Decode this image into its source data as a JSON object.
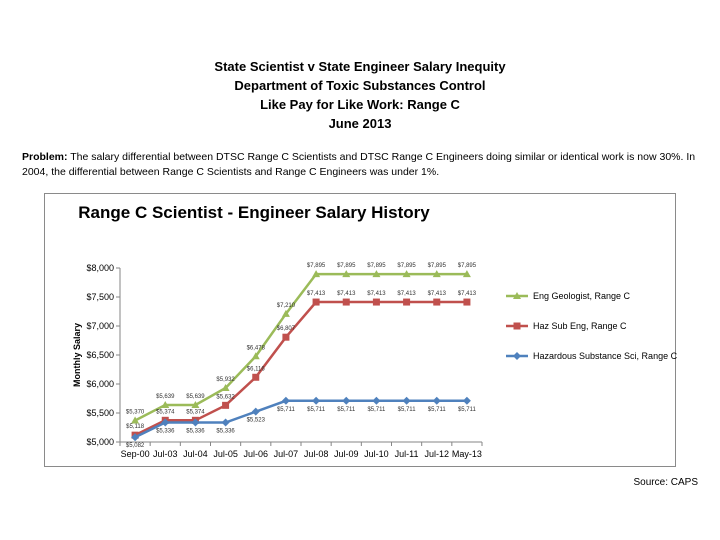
{
  "header": {
    "line1": "State Scientist v State Engineer Salary Inequity",
    "line2": "Department of Toxic Substances Control",
    "line3": "Like Pay for Like Work: Range C",
    "line4": "June 2013"
  },
  "problem": {
    "label": "Problem:",
    "text": "The salary differential between DTSC Range C Scientists and DTSC Range C Engineers doing similar or identical work is now 30%.  In 2004, the differential between Range C Scientists and Range C Engineers was under 1%."
  },
  "source": "Source:  CAPS",
  "chart_data": {
    "type": "line",
    "title": "Range C Scientist - Engineer Salary History",
    "xlabel": "",
    "ylabel": "Monthly Salary",
    "categories": [
      "Sep-00",
      "Jul-03",
      "Jul-04",
      "Jul-05",
      "Jul-06",
      "Jul-07",
      "Jul-08",
      "Jul-09",
      "Jul-10",
      "Jul-11",
      "Jul-12",
      "May-13"
    ],
    "ylim": [
      5000,
      8000
    ],
    "yticks": [
      5000,
      5500,
      6000,
      6500,
      7000,
      7500,
      8000
    ],
    "ytick_labels": [
      "$5,000",
      "$5,500",
      "$6,000",
      "$6,500",
      "$7,000",
      "$7,500",
      "$8,000"
    ],
    "grid": false,
    "legend_position": "right",
    "series": [
      {
        "name": "Eng Geologist, Range C",
        "color": "#9bbb59",
        "marker": "triangle",
        "values": [
          5370,
          5639,
          5639,
          5932,
          6478,
          7210,
          7895,
          7895,
          7895,
          7895,
          7895,
          7895
        ],
        "labels": [
          "$5,370",
          "$5,639",
          "$5,639",
          "$5,932",
          "$6,478",
          "$7,210",
          "$7,895",
          "$7,895",
          "$7,895",
          "$7,895",
          "$7,895",
          "$7,895"
        ]
      },
      {
        "name": "Haz Sub Eng, Range C",
        "color": "#c0504d",
        "marker": "square",
        "values": [
          5118,
          5374,
          5374,
          5632,
          6116,
          6807,
          7413,
          7413,
          7413,
          7413,
          7413,
          7413
        ],
        "labels": [
          "$5,118",
          "$5,374",
          "$5,374",
          "$5,632",
          "$6,116",
          "$6,807",
          "$7,413",
          "$7,413",
          "$7,413",
          "$7,413",
          "$7,413",
          "$7,413"
        ]
      },
      {
        "name": "Hazardous Substance Sci, Range C",
        "color": "#4f81bd",
        "marker": "diamond",
        "values": [
          5082,
          5336,
          5336,
          5336,
          5523,
          5711,
          5711,
          5711,
          5711,
          5711,
          5711,
          5711
        ],
        "labels": [
          "$5,082",
          "$5,336",
          "$5,336",
          "$5,336",
          "$5,523",
          "$5,711",
          "$5,711",
          "$5,711",
          "$5,711",
          "$5,711",
          "$5,711",
          "$5,711"
        ]
      }
    ]
  }
}
